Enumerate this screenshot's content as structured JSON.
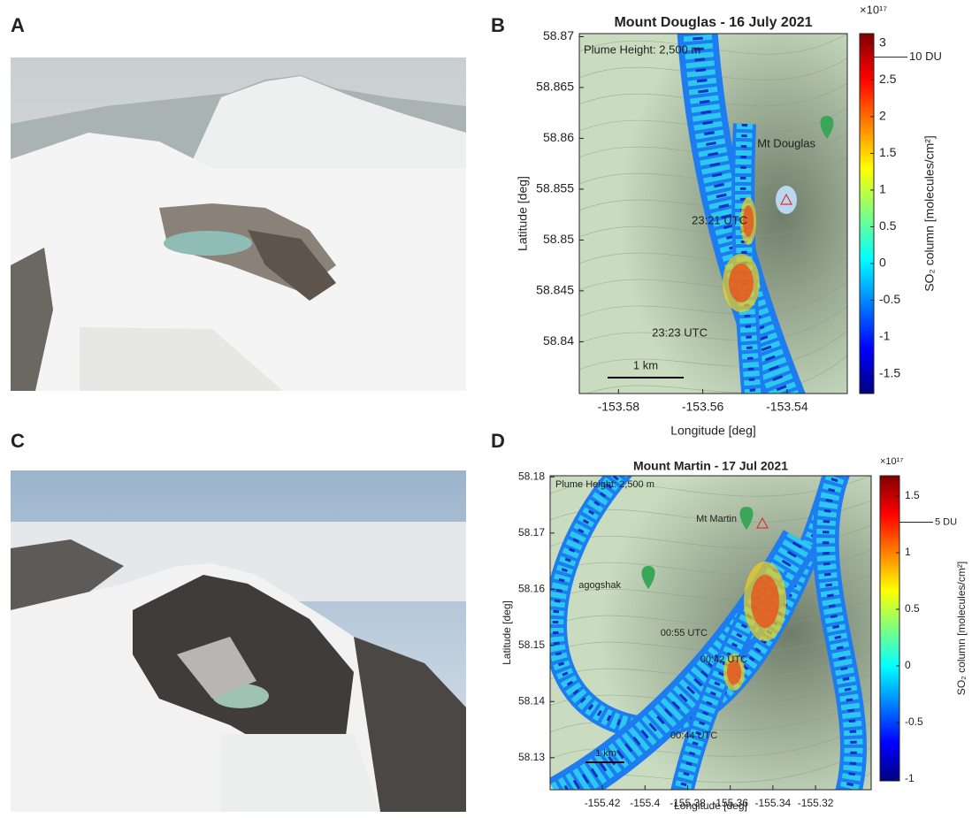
{
  "panel_labels": [
    "A",
    "B",
    "C",
    "D"
  ],
  "chart_data": [
    {
      "type": "map",
      "title": "Mount Douglas - 16 July 2021",
      "xlabel": "Longitude [deg]",
      "ylabel": "Latitude [deg]",
      "xlim": [
        -153.5893,
        -153.5257
      ],
      "xticks": [
        -153.58,
        -153.56,
        -153.54
      ],
      "ylim": [
        58.8349,
        58.8703
      ],
      "yticks": [
        58.84,
        58.845,
        58.85,
        58.855,
        58.86,
        58.865,
        58.87
      ],
      "annotations": [
        "Plume Height: 2,500 m",
        "Mt Douglas",
        "23:21 UTC",
        "23:23 UTC",
        "1 km"
      ],
      "colorbar": {
        "label": "SO₂ column [molecules/cm²]",
        "exponent": "×10¹⁷",
        "lim": [
          -1.77,
          3.13
        ],
        "ticks": [
          -1.5,
          -1,
          -0.5,
          0,
          0.5,
          1,
          1.5,
          2,
          2.5,
          3
        ],
        "marker": {
          "value": 2.81,
          "label": "10 DU"
        }
      }
    },
    {
      "type": "map",
      "title": "Mount Martin - 17 Jul 2021",
      "xlabel": "Longitude [deg]",
      "ylabel": "Latitude [deg]",
      "xlim": [
        -155.4445,
        -155.2939
      ],
      "xticks": [
        -155.42,
        -155.4,
        -155.38,
        -155.36,
        -155.34,
        -155.32
      ],
      "ylim": [
        58.1243,
        58.1802
      ],
      "yticks": [
        58.13,
        58.14,
        58.15,
        58.16,
        58.17,
        58.18
      ],
      "annotations": [
        "Plume Height: 2,500 m",
        "Mt Martin",
        "agogshak",
        "00:55 UTC",
        "00:42 UTC",
        "00:44 UTC",
        "1 km"
      ],
      "colorbar": {
        "label": "SO₂ column [molecules/cm²]",
        "exponent": "×10¹⁷",
        "lim": [
          -1.016,
          1.68
        ],
        "ticks": [
          -1,
          -0.5,
          0,
          0.5,
          1,
          1.5
        ],
        "marker": {
          "value": 1.27,
          "label": "5 DU"
        }
      }
    }
  ]
}
